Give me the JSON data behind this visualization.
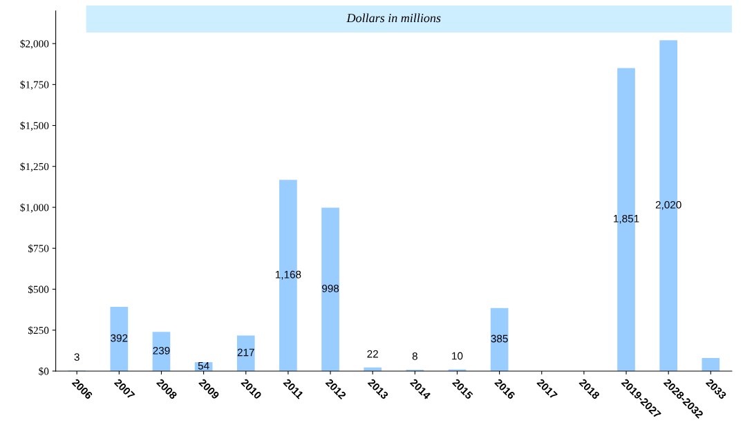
{
  "chart_data": {
    "type": "bar",
    "subtitle": "Dollars in millions",
    "categories": [
      "2006",
      "2007",
      "2008",
      "2009",
      "2010",
      "2011",
      "2012",
      "2013",
      "2014",
      "2015",
      "2016",
      "2017",
      "2018",
      "2019-2027",
      "2028-2032",
      "2033"
    ],
    "values": [
      3,
      392,
      239,
      54,
      217,
      1168,
      998,
      22,
      8,
      10,
      385,
      null,
      null,
      1851,
      2020,
      80
    ],
    "value_labels": [
      "3",
      "392",
      "239",
      "54",
      "217",
      "1,168",
      "998",
      "22",
      "8",
      "10",
      "385",
      null,
      null,
      "1,851",
      "2,020",
      null
    ],
    "color": "#99ccff",
    "ylim": [
      0,
      2200
    ],
    "yticks": [
      {
        "value": 0,
        "label": "$0"
      },
      {
        "value": 250,
        "label": "$250"
      },
      {
        "value": 500,
        "label": "$500"
      },
      {
        "value": 750,
        "label": "$750"
      },
      {
        "value": 1000,
        "label": "$1,000"
      },
      {
        "value": 1250,
        "label": "$1,250"
      },
      {
        "value": 1500,
        "label": "$1,500"
      },
      {
        "value": 1750,
        "label": "$1,750"
      },
      {
        "value": 2000,
        "label": "$2,000"
      }
    ],
    "grid": false,
    "legend": false
  }
}
